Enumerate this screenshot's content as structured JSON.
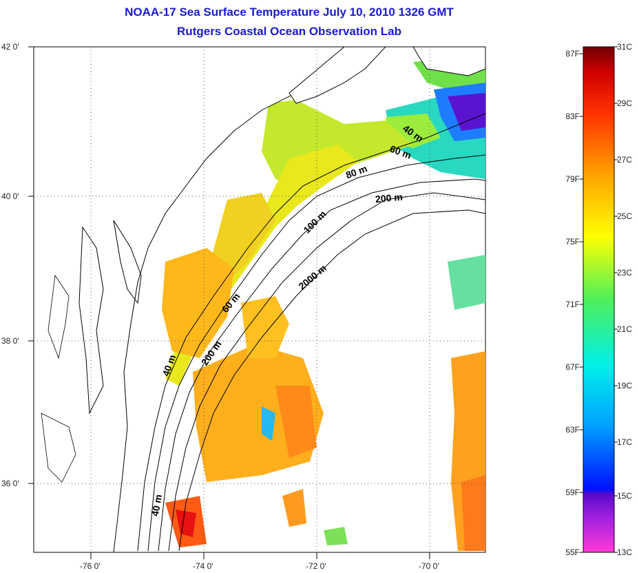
{
  "title_line1": "NOAA-17 Sea Surface Temperature July 10, 2010 1326 GMT",
  "title_line2": "Rutgers Coastal Ocean Observation Lab",
  "lat_ticks": [
    "42 0'",
    "40 0'",
    "38 0'",
    "36 0'"
  ],
  "lon_ticks": [
    "-76 0'",
    "-74 0'",
    "-72 0'",
    "-70 0'"
  ],
  "contour_labels": [
    "40 m",
    "60 m",
    "80 m",
    "200 m",
    "100 m",
    "2000 m",
    "60 m",
    "200 m",
    "40 m",
    "40 m"
  ],
  "colorbar": {
    "fahrenheit": [
      "87F",
      "83F",
      "79F",
      "75F",
      "71F",
      "67F",
      "63F",
      "59F",
      "55F"
    ],
    "celsius": [
      "31C",
      "29C",
      "27C",
      "25C",
      "23C",
      "21C",
      "19C",
      "17C",
      "15C",
      "13C"
    ]
  }
}
